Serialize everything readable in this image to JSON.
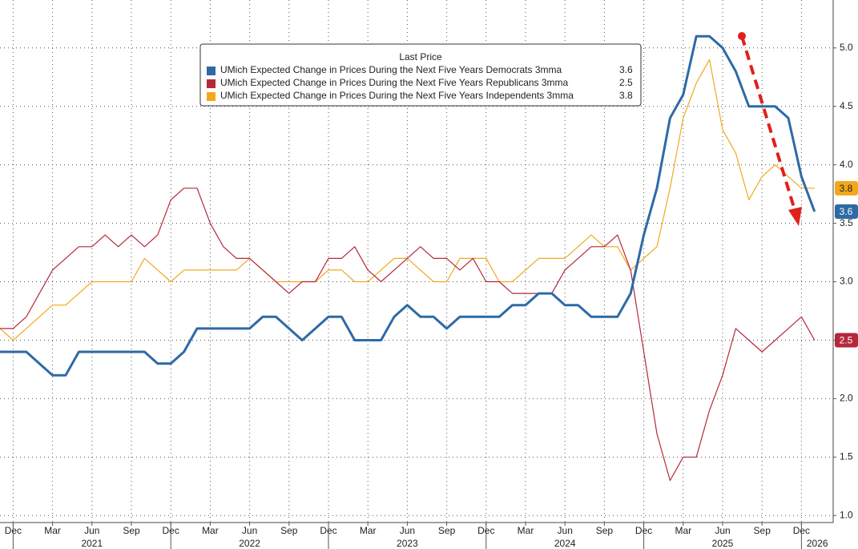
{
  "chart_data": {
    "type": "line",
    "legend_title": "Last Price",
    "x": [
      "2020-11",
      "2020-12",
      "2021-01",
      "2021-02",
      "2021-03",
      "2021-04",
      "2021-05",
      "2021-06",
      "2021-07",
      "2021-08",
      "2021-09",
      "2021-10",
      "2021-11",
      "2021-12",
      "2022-01",
      "2022-02",
      "2022-03",
      "2022-04",
      "2022-05",
      "2022-06",
      "2022-07",
      "2022-08",
      "2022-09",
      "2022-10",
      "2022-11",
      "2022-12",
      "2023-01",
      "2023-02",
      "2023-03",
      "2023-04",
      "2023-05",
      "2023-06",
      "2023-07",
      "2023-08",
      "2023-09",
      "2023-10",
      "2023-11",
      "2023-12",
      "2024-01",
      "2024-02",
      "2024-03",
      "2024-04",
      "2024-05",
      "2024-06",
      "2024-07",
      "2024-08",
      "2024-09",
      "2024-10",
      "2024-11",
      "2024-12",
      "2025-01",
      "2025-02",
      "2025-03",
      "2025-04",
      "2025-05",
      "2025-06",
      "2025-07",
      "2025-08",
      "2025-09",
      "2025-10",
      "2025-11",
      "2025-12",
      "2026-01"
    ],
    "series": [
      {
        "name": "UMich Expected Change in Prices During the Next Five Years Democrats 3mma",
        "color": "#2d6aa6",
        "width": 3,
        "values": [
          2.4,
          2.4,
          2.4,
          2.3,
          2.2,
          2.2,
          2.4,
          2.4,
          2.4,
          2.4,
          2.4,
          2.4,
          2.3,
          2.3,
          2.4,
          2.6,
          2.6,
          2.6,
          2.6,
          2.6,
          2.7,
          2.7,
          2.6,
          2.5,
          2.6,
          2.7,
          2.7,
          2.5,
          2.5,
          2.5,
          2.7,
          2.8,
          2.7,
          2.7,
          2.6,
          2.7,
          2.7,
          2.7,
          2.7,
          2.8,
          2.8,
          2.9,
          2.9,
          2.8,
          2.8,
          2.7,
          2.7,
          2.7,
          2.9,
          3.4,
          3.8,
          4.4,
          4.6,
          5.1,
          5.1,
          5.0,
          4.8,
          4.5,
          4.5,
          4.5,
          4.4,
          3.9,
          3.6
        ]
      },
      {
        "name": "UMich Expected Change in Prices During the Next Five Years Republicans 3mma",
        "color": "#b5283b",
        "width": 1.2,
        "values": [
          2.6,
          2.6,
          2.7,
          2.9,
          3.1,
          3.2,
          3.3,
          3.3,
          3.4,
          3.3,
          3.4,
          3.3,
          3.4,
          3.7,
          3.8,
          3.8,
          3.5,
          3.3,
          3.2,
          3.2,
          3.1,
          3.0,
          2.9,
          3.0,
          3.0,
          3.2,
          3.2,
          3.3,
          3.1,
          3.0,
          3.1,
          3.2,
          3.3,
          3.2,
          3.2,
          3.1,
          3.2,
          3.0,
          3.0,
          2.9,
          2.9,
          2.9,
          2.9,
          3.1,
          3.2,
          3.3,
          3.3,
          3.4,
          3.1,
          2.4,
          1.7,
          1.3,
          1.5,
          1.5,
          1.9,
          2.2,
          2.6,
          2.5,
          2.4,
          2.5,
          2.6,
          2.7,
          2.5
        ]
      },
      {
        "name": "UMich Expected Change in Prices During the Next Five Years Independents 3mma",
        "color": "#f2a81d",
        "width": 1.2,
        "values": [
          2.6,
          2.5,
          2.6,
          2.7,
          2.8,
          2.8,
          2.9,
          3.0,
          3.0,
          3.0,
          3.0,
          3.2,
          3.1,
          3.0,
          3.1,
          3.1,
          3.1,
          3.1,
          3.1,
          3.2,
          3.1,
          3.0,
          3.0,
          3.0,
          3.0,
          3.1,
          3.1,
          3.0,
          3.0,
          3.1,
          3.2,
          3.2,
          3.1,
          3.0,
          3.0,
          3.2,
          3.2,
          3.2,
          3.0,
          3.0,
          3.1,
          3.2,
          3.2,
          3.2,
          3.3,
          3.4,
          3.3,
          3.3,
          3.1,
          3.2,
          3.3,
          3.8,
          4.4,
          4.7,
          4.9,
          4.3,
          4.1,
          3.7,
          3.9,
          4.0,
          3.9,
          3.8,
          3.8
        ]
      }
    ],
    "ylim": [
      0.94,
      5.41
    ],
    "yticks": [
      {
        "value": 1,
        "label": "1.0"
      },
      1.5,
      {
        "value": 2,
        "label": "2.0"
      },
      2.5,
      {
        "value": 3,
        "label": "3.0"
      },
      3.5,
      {
        "value": 4,
        "label": "4.0"
      },
      4.5,
      {
        "value": 5,
        "label": "5.0"
      }
    ],
    "xticks": [
      {
        "value": "2020-12",
        "label": "Dec"
      },
      {
        "value": "2021-03",
        "label": "Mar"
      },
      {
        "value": "2021-06",
        "label": "Jun"
      },
      {
        "value": "2021-09",
        "label": "Sep"
      },
      {
        "value": "2021-12",
        "label": "Dec"
      },
      {
        "value": "2022-03",
        "label": "Mar"
      },
      {
        "value": "2022-06",
        "label": "Jun"
      },
      {
        "value": "2022-09",
        "label": "Sep"
      },
      {
        "value": "2022-12",
        "label": "Dec"
      },
      {
        "value": "2023-03",
        "label": "Mar"
      },
      {
        "value": "2023-06",
        "label": "Jun"
      },
      {
        "value": "2023-09",
        "label": "Sep"
      },
      {
        "value": "2023-12",
        "label": "Dec"
      },
      {
        "value": "2024-03",
        "label": "Mar"
      },
      {
        "value": "2024-06",
        "label": "Jun"
      },
      {
        "value": "2024-09",
        "label": "Sep"
      },
      {
        "value": "2024-12",
        "label": "Dec"
      },
      {
        "value": "2025-03",
        "label": "Mar"
      },
      {
        "value": "2025-06",
        "label": "Jun"
      },
      {
        "value": "2025-09",
        "label": "Sep"
      },
      {
        "value": "2025-12",
        "label": "Dec"
      }
    ],
    "years": [
      "2021",
      "2022",
      "2023",
      "2024",
      "2025",
      "2026"
    ],
    "grid": true
  }
}
